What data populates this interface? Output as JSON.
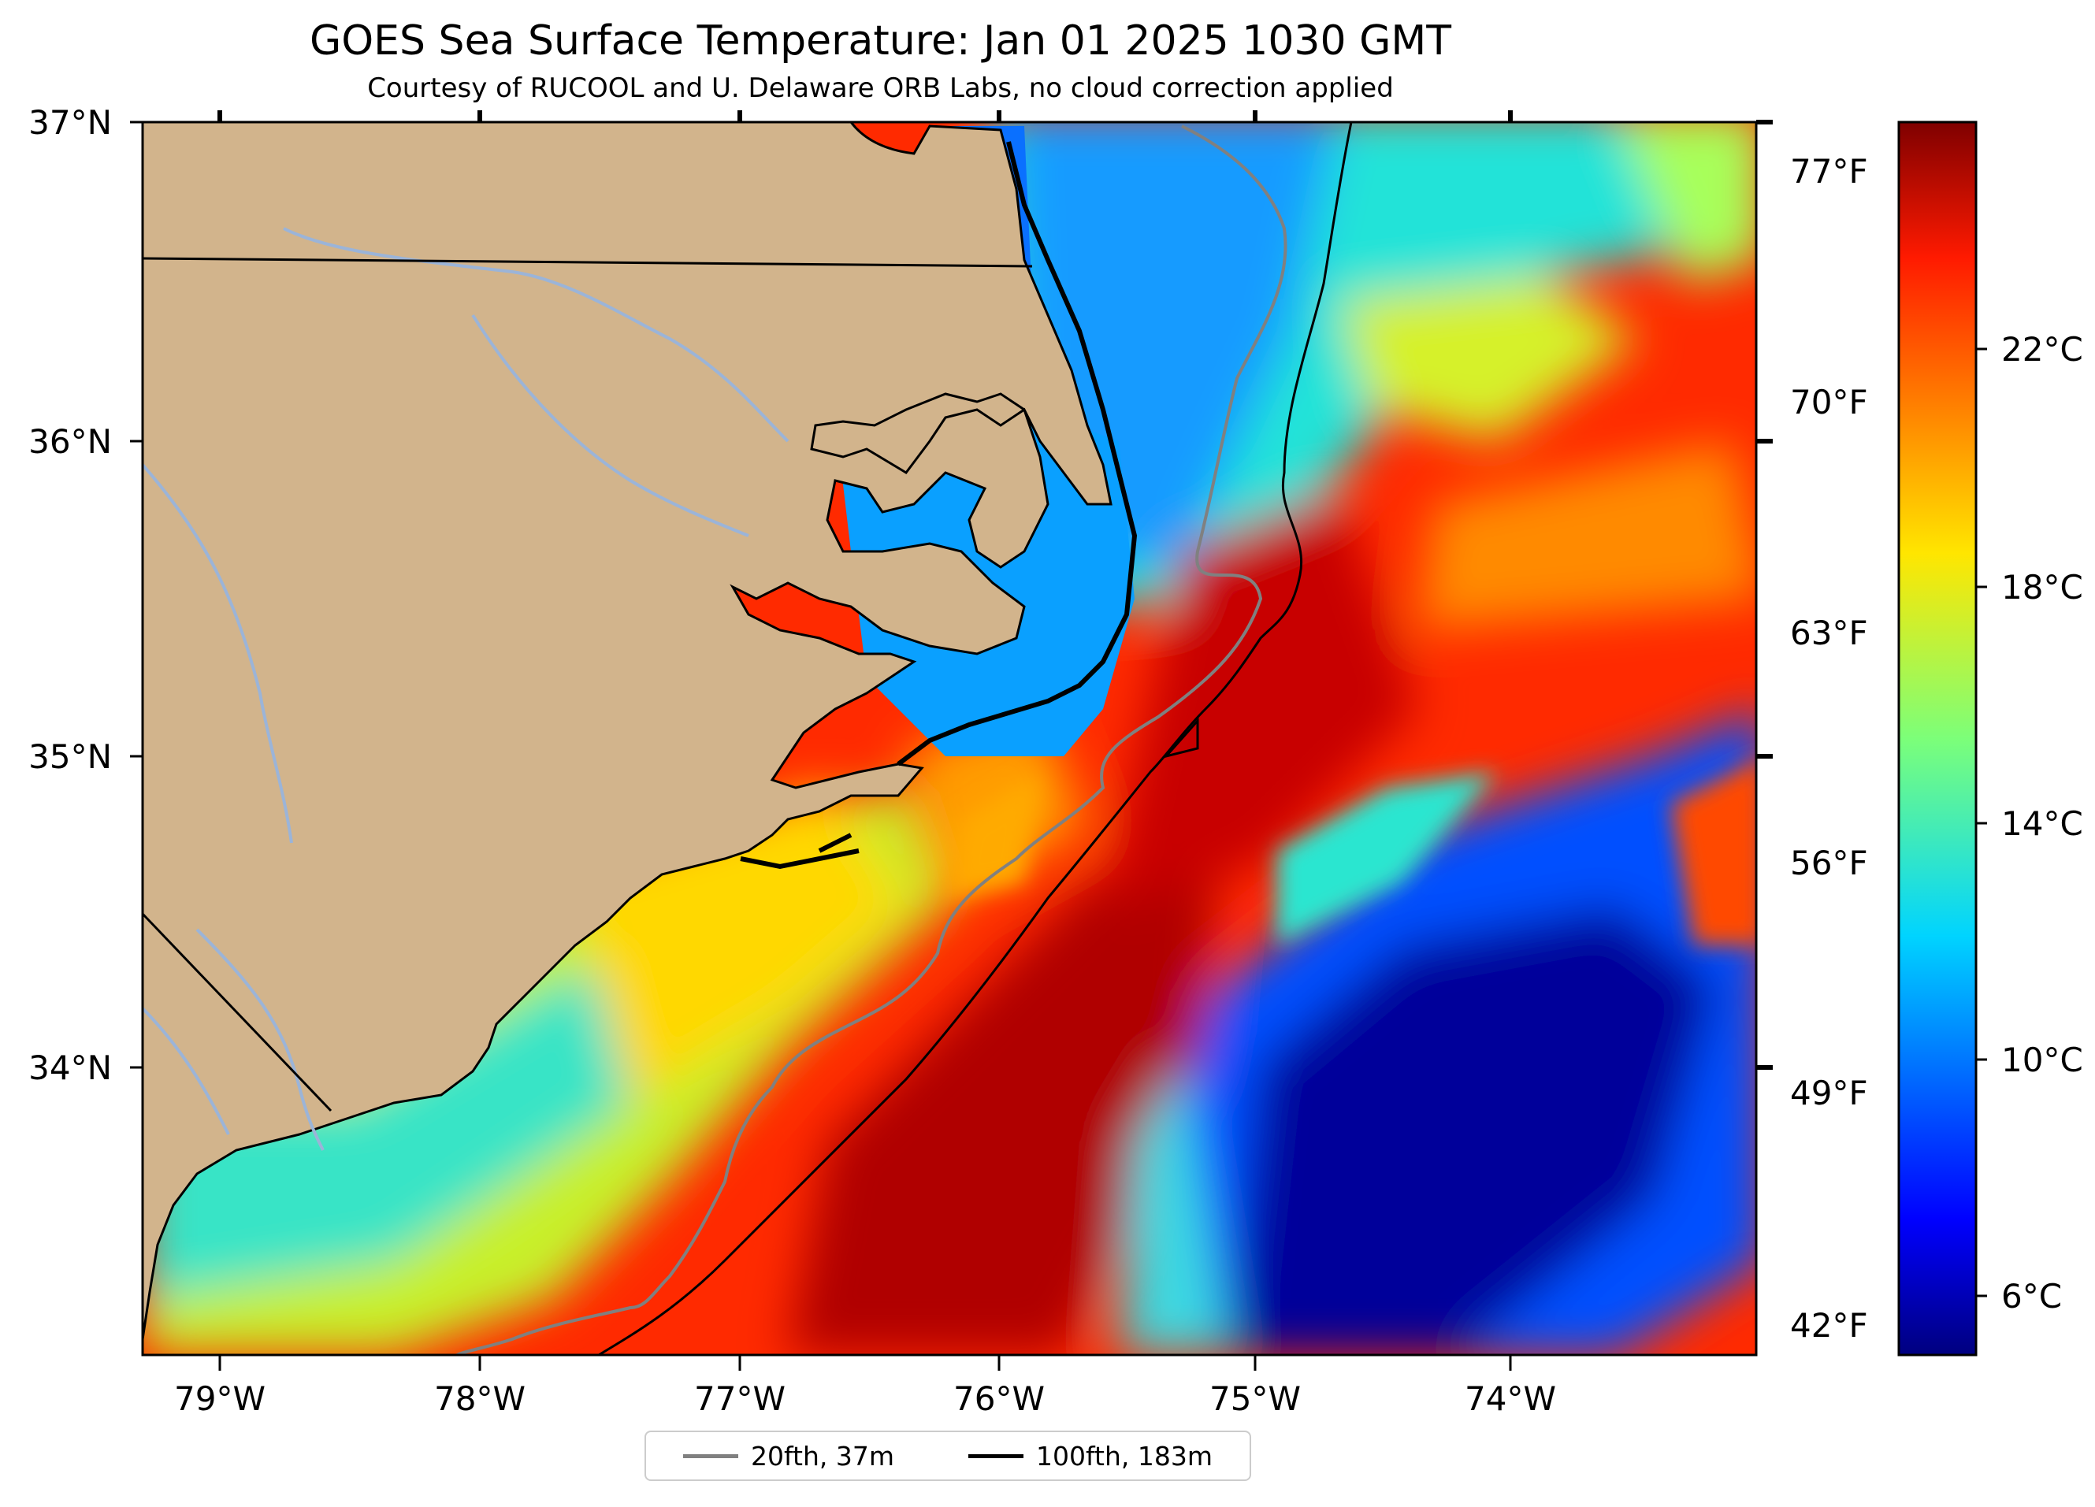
{
  "title": "GOES Sea Surface Temperature: Jan 01 2025 1030 GMT",
  "subtitle": "Courtesy of RUCOOL and U. Delaware ORB Labs, no cloud correction applied",
  "map": {
    "lon_range": [
      -79.3,
      -73.1
    ],
    "lat_range": [
      33.1,
      37.0
    ],
    "lat_ticks": [
      "37°N",
      "36°N",
      "35°N",
      "34°N"
    ],
    "lon_ticks": [
      "79°W",
      "78°W",
      "77°W",
      "76°W",
      "75°W",
      "74°W"
    ],
    "fahrenheit_ticks": [
      "77°F",
      "70°F",
      "63°F",
      "56°F",
      "49°F",
      "42°F"
    ],
    "land_color": "#d2b48c",
    "river_color": "#9bb4d8"
  },
  "colorbar": {
    "colormap": "jet",
    "range_c": [
      4.5,
      26.5
    ],
    "ticks": [
      "22°C",
      "18°C",
      "14°C",
      "10°C",
      "6°C"
    ]
  },
  "legend": {
    "items": [
      {
        "label": "20fth, 37m",
        "color": "#808080"
      },
      {
        "label": "100fth, 183m",
        "color": "#000000"
      }
    ]
  }
}
